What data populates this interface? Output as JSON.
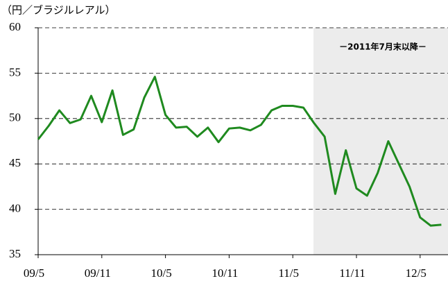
{
  "chart_data": {
    "type": "line",
    "y_axis_label": "（円／ブラジルレアル）",
    "annotation": "－2011年7月末以降－",
    "categories": [
      "09/5",
      null,
      null,
      null,
      null,
      null,
      "09/11",
      null,
      null,
      null,
      null,
      null,
      "10/5",
      null,
      null,
      null,
      null,
      null,
      "10/11",
      null,
      null,
      null,
      null,
      null,
      "11/5",
      null,
      null,
      null,
      null,
      null,
      "11/11",
      null,
      null,
      null,
      null,
      null,
      "12/5",
      null,
      null
    ],
    "series": [
      {
        "name": "円／ブラジルレアル",
        "color": "#1f8a1f",
        "values": [
          47.7,
          49.2,
          50.9,
          49.5,
          49.9,
          52.5,
          49.6,
          53.1,
          48.2,
          48.8,
          52.3,
          54.6,
          50.4,
          49.0,
          49.1,
          48.0,
          49.0,
          47.4,
          48.9,
          49.0,
          48.7,
          49.3,
          50.9,
          51.4,
          51.4,
          51.2,
          49.5,
          48.0,
          41.7,
          46.5,
          42.3,
          41.5,
          44.0,
          47.5,
          45.0,
          42.5,
          39.1,
          38.2,
          38.3
        ]
      }
    ],
    "ylim": [
      35,
      60
    ],
    "yticks": [
      35,
      40,
      45,
      50,
      55,
      60
    ],
    "grid": true
  }
}
